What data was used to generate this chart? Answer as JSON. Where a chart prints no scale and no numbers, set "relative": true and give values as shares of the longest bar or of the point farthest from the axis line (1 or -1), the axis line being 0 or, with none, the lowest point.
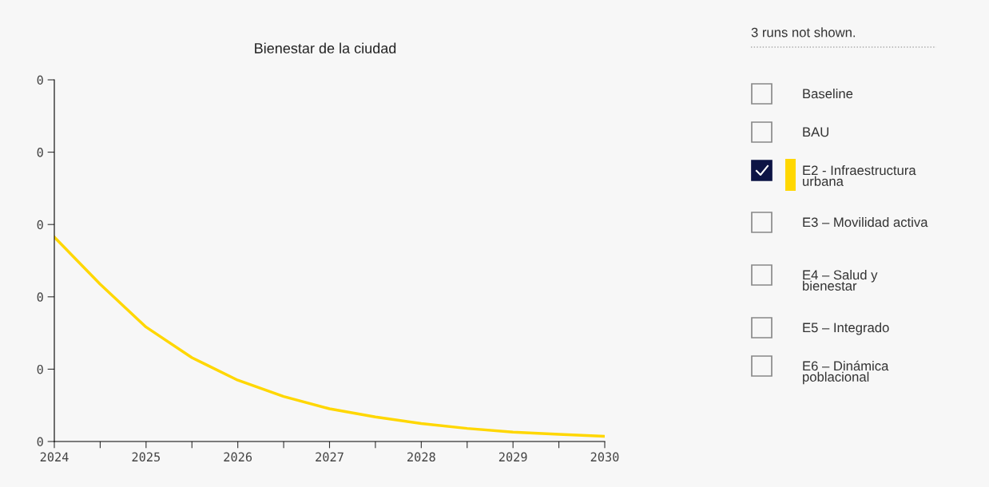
{
  "chart_data": {
    "type": "line",
    "title": "Bienestar de la ciudad",
    "relative": true,
    "x": [
      2024,
      2024.5,
      2025,
      2025.5,
      2026,
      2026.5,
      2027,
      2027.5,
      2028,
      2028.5,
      2029,
      2029.5,
      2030
    ],
    "series": [
      {
        "name": "Baseline",
        "values": [
          null,
          null,
          null,
          null,
          null,
          null,
          null,
          null,
          null,
          null,
          null,
          null,
          null
        ]
      },
      {
        "name": "BAU",
        "values": [
          null,
          null,
          null,
          null,
          null,
          null,
          null,
          null,
          null,
          null,
          null,
          null,
          null
        ]
      },
      {
        "name": "E2 - Infraestructura urbana",
        "color": "#ffd700",
        "values": [
          1,
          0.77,
          0.56,
          0.41,
          0.3,
          0.22,
          0.16,
          0.12,
          0.088,
          0.064,
          0.046,
          0.035,
          0.025
        ]
      },
      {
        "name": "E3 – Movilidad activa",
        "values": [
          null,
          null,
          null,
          null,
          null,
          null,
          null,
          null,
          null,
          null,
          null,
          null,
          null
        ]
      },
      {
        "name": "E4 – Salud y bienestar",
        "values": [
          null,
          null,
          null,
          null,
          null,
          null,
          null,
          null,
          null,
          null,
          null,
          null,
          null
        ]
      },
      {
        "name": "E5 – Integrado",
        "values": [
          null,
          null,
          null,
          null,
          null,
          null,
          null,
          null,
          null,
          null,
          null,
          null,
          null
        ]
      },
      {
        "name": "E6 – Dinámica poblacional",
        "values": [
          null,
          null,
          null,
          null,
          null,
          null,
          null,
          null,
          null,
          null,
          null,
          null,
          null
        ]
      }
    ],
    "xlim": [
      2024,
      2030
    ],
    "xticks": [
      2024,
      {
        "value": 2024.5,
        "label": null
      },
      2025,
      {
        "value": 2025.5,
        "label": null
      },
      2026,
      {
        "value": 2026.5,
        "label": null
      },
      2027,
      {
        "value": 2027.5,
        "label": null
      },
      2028,
      {
        "value": 2028.5,
        "label": null
      },
      2029,
      {
        "value": 2029.5,
        "label": null
      },
      2030
    ],
    "grid": false,
    "legend": "right",
    "marker": "none",
    "line_style": "solid",
    "annotations": [
      "3 runs not shown.",
      "0",
      "0",
      "0",
      "0",
      "0",
      "0"
    ]
  }
}
